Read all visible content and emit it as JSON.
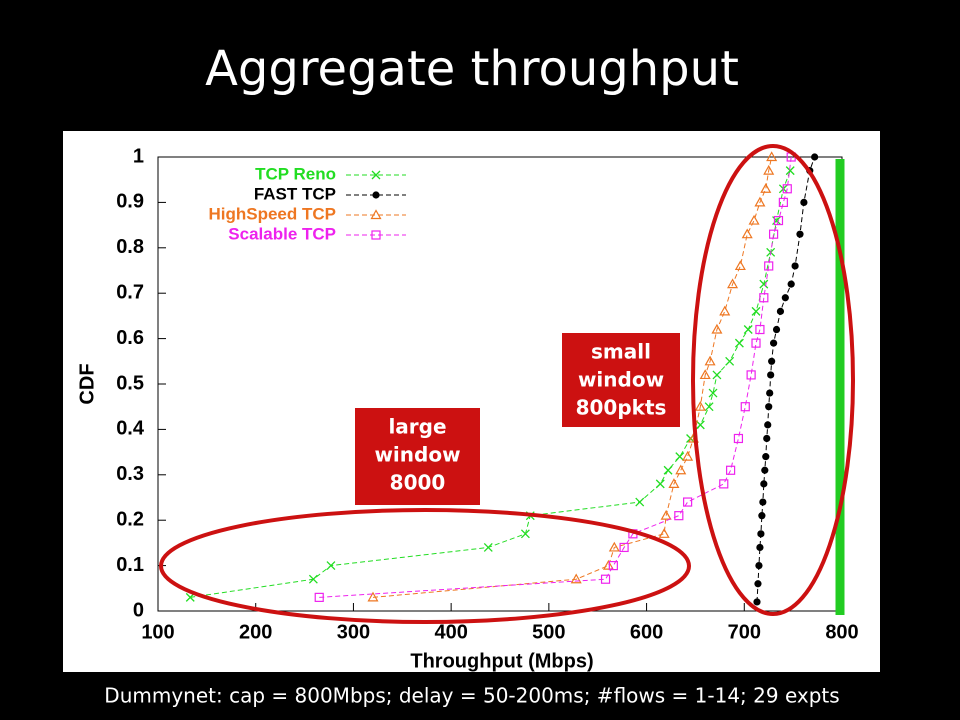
{
  "slide": {
    "title": "Aggregate throughput",
    "caption": "Dummynet: cap = 800Mbps; delay = 50-200ms; #flows = 1-14; 29 expts"
  },
  "chart_data": {
    "type": "line",
    "x_label": "Throughput (Mbps)",
    "y_label": "CDF",
    "xlim": [
      100,
      800
    ],
    "ylim": [
      0,
      1
    ],
    "xticks": [
      100,
      200,
      300,
      400,
      500,
      600,
      700,
      800
    ],
    "yticks": [
      0,
      0.1,
      0.2,
      0.3,
      0.4,
      0.5,
      0.6,
      0.7,
      0.8,
      0.9,
      1
    ],
    "legend": "upper-left",
    "series": [
      {
        "name": "TCP Reno",
        "color": "#22dd22",
        "marker": "x",
        "x": [
          133,
          259,
          277,
          438,
          476,
          481,
          593,
          614,
          622,
          634,
          645,
          655,
          664,
          668,
          672,
          685,
          695,
          704,
          712,
          720,
          727,
          733,
          740,
          747
        ],
        "values": [
          0.03,
          0.07,
          0.1,
          0.14,
          0.17,
          0.21,
          0.24,
          0.28,
          0.31,
          0.34,
          0.38,
          0.41,
          0.45,
          0.48,
          0.52,
          0.55,
          0.59,
          0.62,
          0.66,
          0.72,
          0.79,
          0.86,
          0.93,
          0.97
        ]
      },
      {
        "name": "FAST TCP",
        "color": "#000000",
        "marker": "circle",
        "x": [
          713,
          714,
          715,
          716,
          717,
          718,
          719,
          720,
          721,
          722,
          723,
          724,
          725,
          726,
          727,
          728,
          730,
          733,
          737,
          742,
          748,
          752,
          757,
          761,
          767,
          772
        ],
        "values": [
          0.02,
          0.06,
          0.1,
          0.14,
          0.17,
          0.21,
          0.24,
          0.28,
          0.31,
          0.34,
          0.38,
          0.41,
          0.45,
          0.48,
          0.52,
          0.55,
          0.59,
          0.62,
          0.66,
          0.69,
          0.72,
          0.76,
          0.83,
          0.9,
          0.97,
          1.0
        ]
      },
      {
        "name": "HighSpeed TCP",
        "color": "#ee7722",
        "marker": "triangle",
        "x": [
          320,
          528,
          561,
          567,
          618,
          620,
          628,
          635,
          642,
          648,
          655,
          660,
          665,
          672,
          680,
          688,
          696,
          703,
          710,
          716,
          722,
          725,
          728
        ],
        "values": [
          0.03,
          0.07,
          0.1,
          0.14,
          0.17,
          0.21,
          0.28,
          0.31,
          0.34,
          0.38,
          0.45,
          0.52,
          0.55,
          0.62,
          0.66,
          0.72,
          0.76,
          0.83,
          0.86,
          0.9,
          0.93,
          0.97,
          1.0
        ]
      },
      {
        "name": "Scalable TCP",
        "color": "#ee22ee",
        "marker": "square",
        "x": [
          265,
          558,
          566,
          577,
          586,
          633,
          642,
          679,
          686,
          694,
          701,
          707,
          712,
          716,
          720,
          725,
          730,
          735,
          740,
          744,
          748
        ],
        "values": [
          0.03,
          0.07,
          0.1,
          0.14,
          0.17,
          0.21,
          0.24,
          0.28,
          0.31,
          0.38,
          0.45,
          0.52,
          0.59,
          0.62,
          0.69,
          0.76,
          0.83,
          0.86,
          0.9,
          0.93,
          1.0
        ]
      }
    ],
    "capacity_line": {
      "x": 800,
      "color": "#22cc22"
    },
    "annotations": [
      {
        "lines": [
          "large",
          "window",
          "8000"
        ]
      },
      {
        "lines": [
          "small",
          "window",
          "800pkts"
        ]
      }
    ]
  }
}
